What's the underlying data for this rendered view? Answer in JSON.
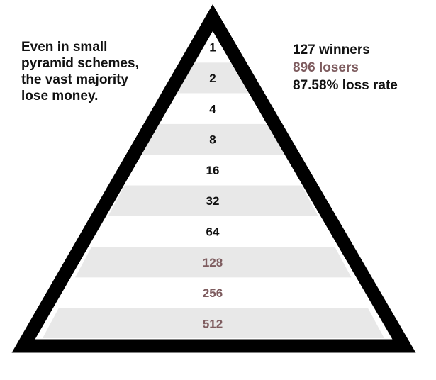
{
  "caption": {
    "lines": [
      "Even in small",
      "pyramid schemes,",
      "the vast majority",
      "lose money."
    ]
  },
  "stats": {
    "winners": "127 winners",
    "losers": "896 losers",
    "loss_rate": "87.58% loss rate"
  },
  "pyramid": {
    "levels": [
      {
        "label": "1",
        "status": "winner"
      },
      {
        "label": "2",
        "status": "winner"
      },
      {
        "label": "4",
        "status": "winner"
      },
      {
        "label": "8",
        "status": "winner"
      },
      {
        "label": "16",
        "status": "winner"
      },
      {
        "label": "32",
        "status": "winner"
      },
      {
        "label": "64",
        "status": "winner"
      },
      {
        "label": "128",
        "status": "loser"
      },
      {
        "label": "256",
        "status": "loser"
      },
      {
        "label": "512",
        "status": "loser"
      }
    ]
  },
  "colors": {
    "winner_text": "#111111",
    "loser_text": "#7e5c5f",
    "band_shaded": "#e8e8e8",
    "band_plain": "#ffffff",
    "outline": "#000000"
  }
}
